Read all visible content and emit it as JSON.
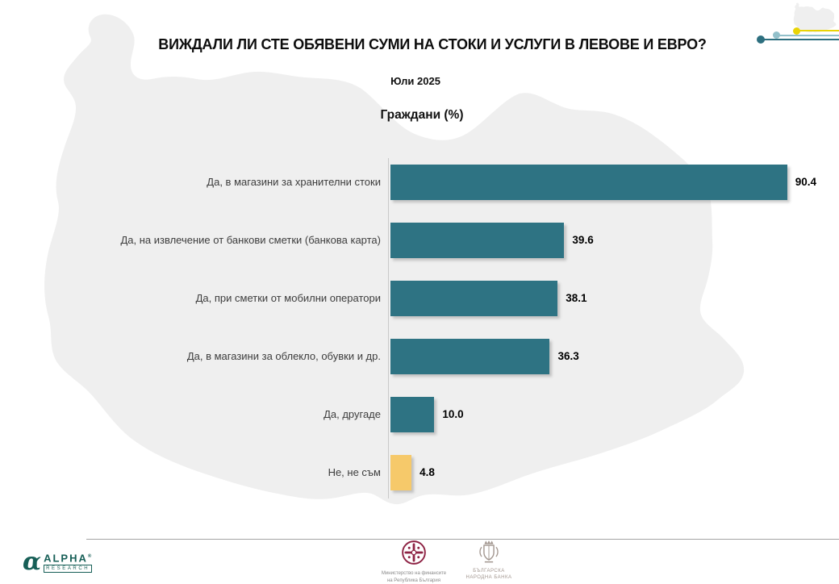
{
  "title": "ВИЖДАЛИ ЛИ СТЕ ОБЯВЕНИ СУМИ НА СТОКИ И УСЛУГИ В ЛЕВОВЕ И ЕВРО?",
  "subtitle": "Юли 2025",
  "chart_heading": "Граждани (%)",
  "chart_data": {
    "type": "bar",
    "orientation": "horizontal",
    "title": "ВИЖДАЛИ ЛИ СТЕ ОБЯВЕНИ СУМИ НА СТОКИ И УСЛУГИ В ЛЕВОВЕ И ЕВРО?",
    "subtitle": "Юли 2025",
    "group_label": "Граждани (%)",
    "unit": "%",
    "xlim": [
      0,
      100
    ],
    "grid": false,
    "categories": [
      "Да, в магазини за хранителни стоки",
      "Да, на извлечение от банкови сметки (банкова карта)",
      "Да, при сметки от мобилни оператори",
      "Да, в магазини за облекло, обувки и др.",
      "Да, другаде",
      "Не, не съм"
    ],
    "values": [
      90.4,
      39.6,
      38.1,
      36.3,
      10.0,
      4.8
    ],
    "value_labels": [
      "90.4",
      "39.6",
      "38.1",
      "36.3",
      "10.0",
      "4.8"
    ],
    "bar_colors": [
      "#2e7383",
      "#2e7383",
      "#2e7383",
      "#2e7383",
      "#2e7383",
      "#f6c96a"
    ]
  },
  "colors": {
    "map-gray": "#efefef",
    "minimap-blue": "#e4eaf5",
    "teal-bar": "#2e7383",
    "yellow-bar": "#f6c96a",
    "alpha-teal": "#175f57",
    "ministry-maroon": "#8e2344",
    "bnb-gray": "#a2968f",
    "decor-yellow": "#e9d405",
    "decor-light-teal": "#92c0ca",
    "decor-dark-teal": "#2d6f7f"
  },
  "footer": {
    "alpha_logo": {
      "symbol": "α",
      "name": "ALPHA",
      "reg": "®",
      "sub": "RESEARCH"
    },
    "ministry": {
      "line1": "Министерство на финансите",
      "line2": "на Република България"
    },
    "bnb": {
      "line1": "БЪЛГАРСКА",
      "line2": "НАРОДНА БАНКА"
    }
  }
}
